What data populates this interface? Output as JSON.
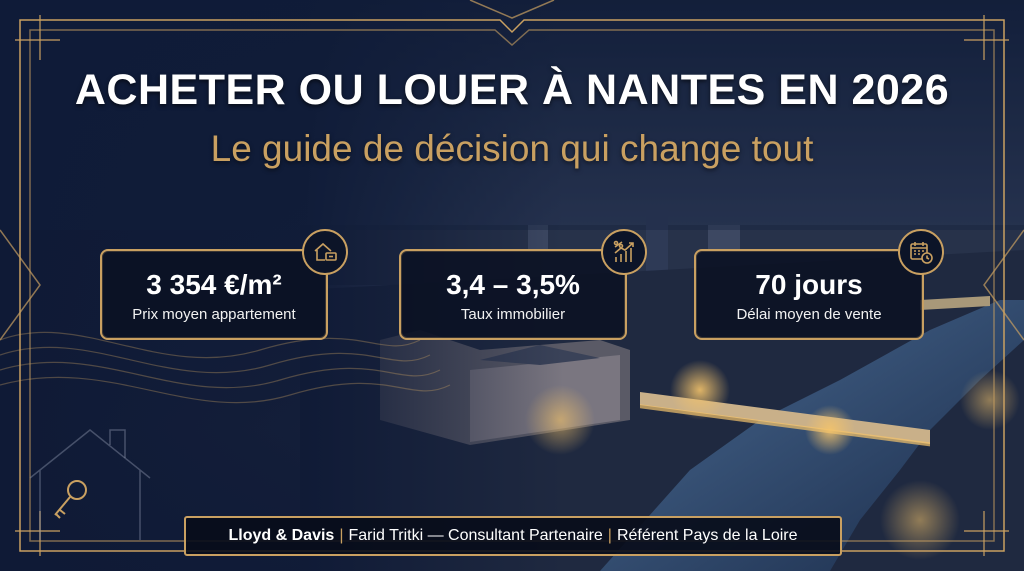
{
  "header": {
    "title": "ACHETER OU LOUER À NANTES EN 2026",
    "subtitle": "Le guide de décision qui change tout"
  },
  "stats": [
    {
      "value": "3 354 €/m²",
      "label": "Prix moyen appartement",
      "icon": "house-price-icon"
    },
    {
      "value": "3,4 – 3,5%",
      "label": "Taux immobilier",
      "icon": "percent-chart-icon"
    },
    {
      "value": "70 jours",
      "label": "Délai moyen de vente",
      "icon": "calendar-clock-icon"
    }
  ],
  "footer": {
    "brand": "Lloyd & Davis",
    "separator": "|",
    "consultant": "Farid Tritki — Consultant Partenaire",
    "region": "Référent Pays de la Loire"
  },
  "colors": {
    "gold": "#c9a061",
    "navy": "#0d1730",
    "text": "#ffffff"
  }
}
